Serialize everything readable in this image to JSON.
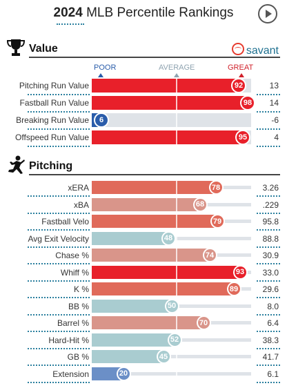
{
  "header": {
    "year": "2024",
    "title": "MLB Percentile Rankings"
  },
  "sections": {
    "value": {
      "label": "Value",
      "brand": "savant"
    },
    "pitching": {
      "label": "Pitching"
    }
  },
  "scale_labels": {
    "poor": "POOR",
    "average": "AVERAGE",
    "great": "GREAT"
  },
  "colors": {
    "poor": "#2a5caa",
    "average_text": "#8fa3b0",
    "great": "#d0202a",
    "brand": "#1d6f8f",
    "bar_red_strong": "#e8202a",
    "bar_red": "#e06a5a",
    "bar_salmon": "#d9958a",
    "bar_teal": "#a9ccd0",
    "bar_blue": "#2a5caa",
    "bar_blue_light": "#6b8fc7"
  },
  "chart_data": [
    {
      "type": "bar",
      "title": "Value",
      "xlim": [
        0,
        100
      ],
      "categories": [
        "Pitching Run Value",
        "Fastball Run Value",
        "Breaking Run Value",
        "Offspeed Run Value"
      ],
      "percentiles": [
        92,
        98,
        6,
        95
      ],
      "stat_values": [
        "13",
        "14",
        "-6",
        "4"
      ]
    },
    {
      "type": "bar",
      "title": "Pitching",
      "xlim": [
        0,
        100
      ],
      "categories": [
        "xERA",
        "xBA",
        "Fastball Velo",
        "Avg Exit Velocity",
        "Chase %",
        "Whiff %",
        "K %",
        "BB %",
        "Barrel %",
        "Hard-Hit %",
        "GB %",
        "Extension"
      ],
      "percentiles": [
        78,
        68,
        79,
        48,
        74,
        93,
        89,
        50,
        70,
        52,
        45,
        20
      ],
      "stat_values": [
        "3.26",
        ".229",
        "95.8",
        "88.8",
        "30.9",
        "33.0",
        "29.6",
        "8.0",
        "6.4",
        "38.3",
        "41.7",
        "6.1"
      ]
    }
  ]
}
